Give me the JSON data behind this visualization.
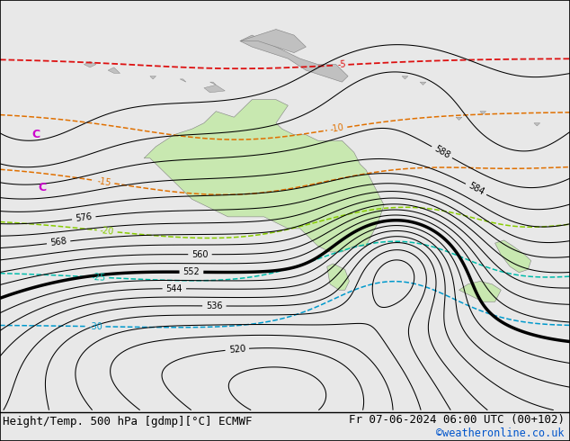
{
  "title_left": "Height/Temp. 500 hPa [gdmp][°C] ECMWF",
  "title_right": "Fr 07-06-2024 06:00 UTC (00+102)",
  "copyright": "©weatheronline.co.uk",
  "background_color": "#e8e8e8",
  "ocean_color": "#e0e0e0",
  "australia_color": "#c8e8b0",
  "land_gray_color": "#c0c0c0",
  "font_size_title": 9,
  "font_size_labels": 7,
  "lon_min": 90,
  "lon_max": 185,
  "lat_min": -65,
  "lat_max": 5,
  "bold_level": 552
}
